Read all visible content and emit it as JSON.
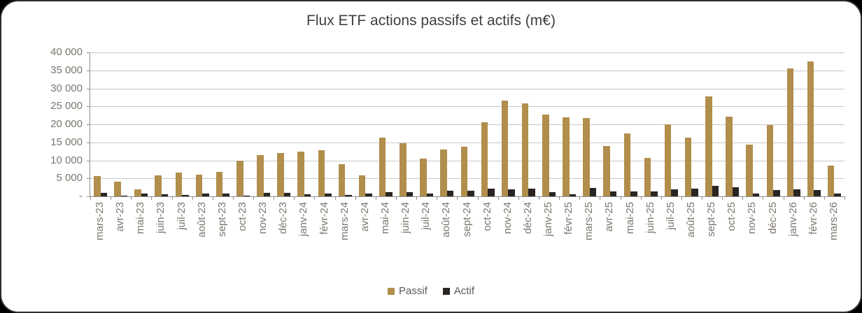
{
  "frame": {
    "background_color": "#000000",
    "card_color": "#ffffff"
  },
  "chart_data": {
    "type": "bar",
    "title": "Flux ETF actions passifs et actifs (m€)",
    "xlabel": "",
    "ylabel": "",
    "ylim": [
      0,
      40000
    ],
    "y_tick_step": 5000,
    "y_tick_labels_top_to_bottom": [
      "40 000",
      "35 000",
      "30 000",
      "25 000",
      "20 000",
      "15 000",
      "10 000",
      "5 000",
      "-"
    ],
    "grid": true,
    "legend_position": "bottom",
    "categories": [
      "mars-23",
      "avr-23",
      "mai-23",
      "juin-23",
      "juil-23",
      "août-23",
      "sept-23",
      "oct-23",
      "nov-23",
      "déc-23",
      "janv-24",
      "févr-24",
      "mars-24",
      "avr-24",
      "mai-24",
      "juin-24",
      "juil-24",
      "août-24",
      "sept-24",
      "oct-24",
      "nov-24",
      "déc-24",
      "janv-25",
      "févr-25",
      "mars-25",
      "avr-25",
      "mai-25",
      "juin-25",
      "juil-25",
      "août-25",
      "sept-25",
      "oct-25",
      "nov-25",
      "déc-25",
      "janv-26",
      "févr-26",
      "mars-26"
    ],
    "series": [
      {
        "name": "Passif",
        "color": "#B18E4C",
        "values": [
          5600,
          4100,
          1900,
          5800,
          6600,
          6000,
          6800,
          9900,
          11400,
          12100,
          12500,
          12800,
          8900,
          5800,
          16300,
          14800,
          10500,
          13000,
          13700,
          20500,
          26600,
          25800,
          22800,
          22000,
          21700,
          13900,
          17400,
          10700,
          20000,
          16400,
          27800,
          22100,
          14400,
          19800,
          35500,
          37400,
          8600
        ]
      },
      {
        "name": "Actif",
        "color": "#2B2521",
        "values": [
          1000,
          100,
          800,
          600,
          300,
          800,
          800,
          100,
          900,
          900,
          600,
          800,
          450,
          800,
          1200,
          1200,
          800,
          1500,
          1500,
          2100,
          1900,
          2200,
          1200,
          650,
          2400,
          1300,
          1300,
          1300,
          1900,
          2100,
          2900,
          2500,
          700,
          1800,
          1900,
          1700,
          800
        ]
      }
    ],
    "axis_color": "#8f8f8f",
    "gridline_color": "#c8c8c8",
    "label_color": "#7b766e",
    "title_color": "#3f3f3f"
  },
  "legend": {
    "passif_label": "Passif",
    "actif_label": "Actif"
  }
}
